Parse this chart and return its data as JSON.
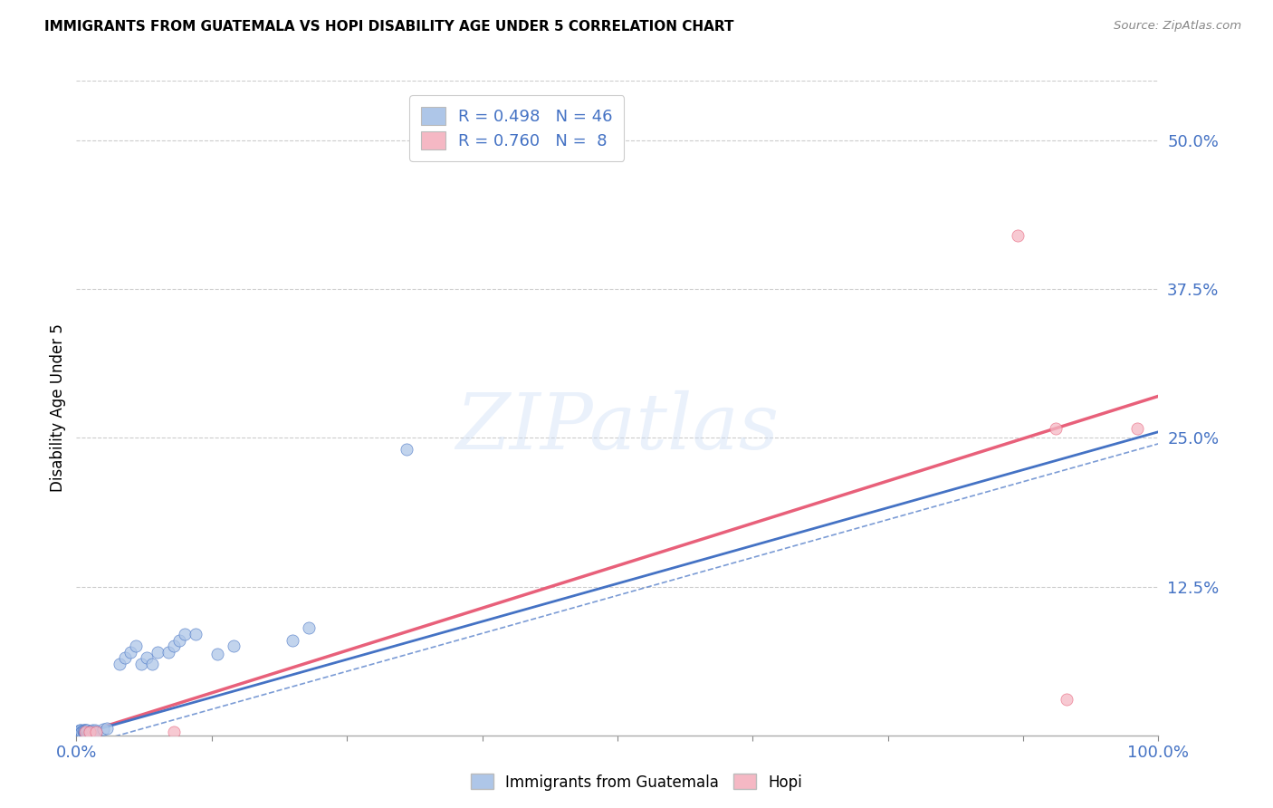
{
  "title": "IMMIGRANTS FROM GUATEMALA VS HOPI DISABILITY AGE UNDER 5 CORRELATION CHART",
  "source": "Source: ZipAtlas.com",
  "ylabel": "Disability Age Under 5",
  "legend_label_blue": "Immigrants from Guatemala",
  "legend_label_pink": "Hopi",
  "R_blue": 0.498,
  "N_blue": 46,
  "R_pink": 0.76,
  "N_pink": 8,
  "blue_color": "#aec6e8",
  "pink_color": "#f5b8c4",
  "regression_blue": "#4472c4",
  "regression_pink": "#e8607a",
  "xlim": [
    0,
    1.0
  ],
  "ylim": [
    0,
    0.55
  ],
  "xticks": [
    0.0,
    0.125,
    0.25,
    0.375,
    0.5,
    0.625,
    0.75,
    0.875,
    1.0
  ],
  "yticks": [
    0.0,
    0.125,
    0.25,
    0.375,
    0.5
  ],
  "blue_line_x0": 0.0,
  "blue_line_y0": 0.0,
  "blue_line_x1": 1.0,
  "blue_line_y1": 0.255,
  "pink_line_x0": 0.0,
  "pink_line_y0": 0.0,
  "pink_line_x1": 1.0,
  "pink_line_y1": 0.285,
  "blue_pts_x": [
    0.001,
    0.002,
    0.003,
    0.003,
    0.004,
    0.004,
    0.005,
    0.005,
    0.006,
    0.006,
    0.007,
    0.007,
    0.008,
    0.008,
    0.009,
    0.009,
    0.01,
    0.01,
    0.011,
    0.012,
    0.013,
    0.014,
    0.015,
    0.016,
    0.017,
    0.018,
    0.025,
    0.028,
    0.04,
    0.045,
    0.05,
    0.055,
    0.06,
    0.065,
    0.07,
    0.075,
    0.085,
    0.09,
    0.095,
    0.1,
    0.11,
    0.13,
    0.145,
    0.2,
    0.215,
    0.305
  ],
  "blue_pts_y": [
    0.003,
    0.003,
    0.003,
    0.004,
    0.003,
    0.004,
    0.003,
    0.003,
    0.003,
    0.004,
    0.003,
    0.004,
    0.003,
    0.004,
    0.003,
    0.004,
    0.003,
    0.004,
    0.003,
    0.003,
    0.003,
    0.003,
    0.004,
    0.003,
    0.004,
    0.003,
    0.005,
    0.006,
    0.06,
    0.065,
    0.07,
    0.075,
    0.06,
    0.065,
    0.06,
    0.07,
    0.07,
    0.075,
    0.08,
    0.085,
    0.085,
    0.068,
    0.075,
    0.08,
    0.09,
    0.24
  ],
  "pink_pts_x": [
    0.008,
    0.012,
    0.018,
    0.09,
    0.87,
    0.905,
    0.915,
    0.98
  ],
  "pink_pts_y": [
    0.003,
    0.003,
    0.003,
    0.003,
    0.42,
    0.258,
    0.03,
    0.258
  ],
  "watermark_text": "ZIPatlas",
  "background_color": "#ffffff",
  "grid_color": "#cccccc"
}
